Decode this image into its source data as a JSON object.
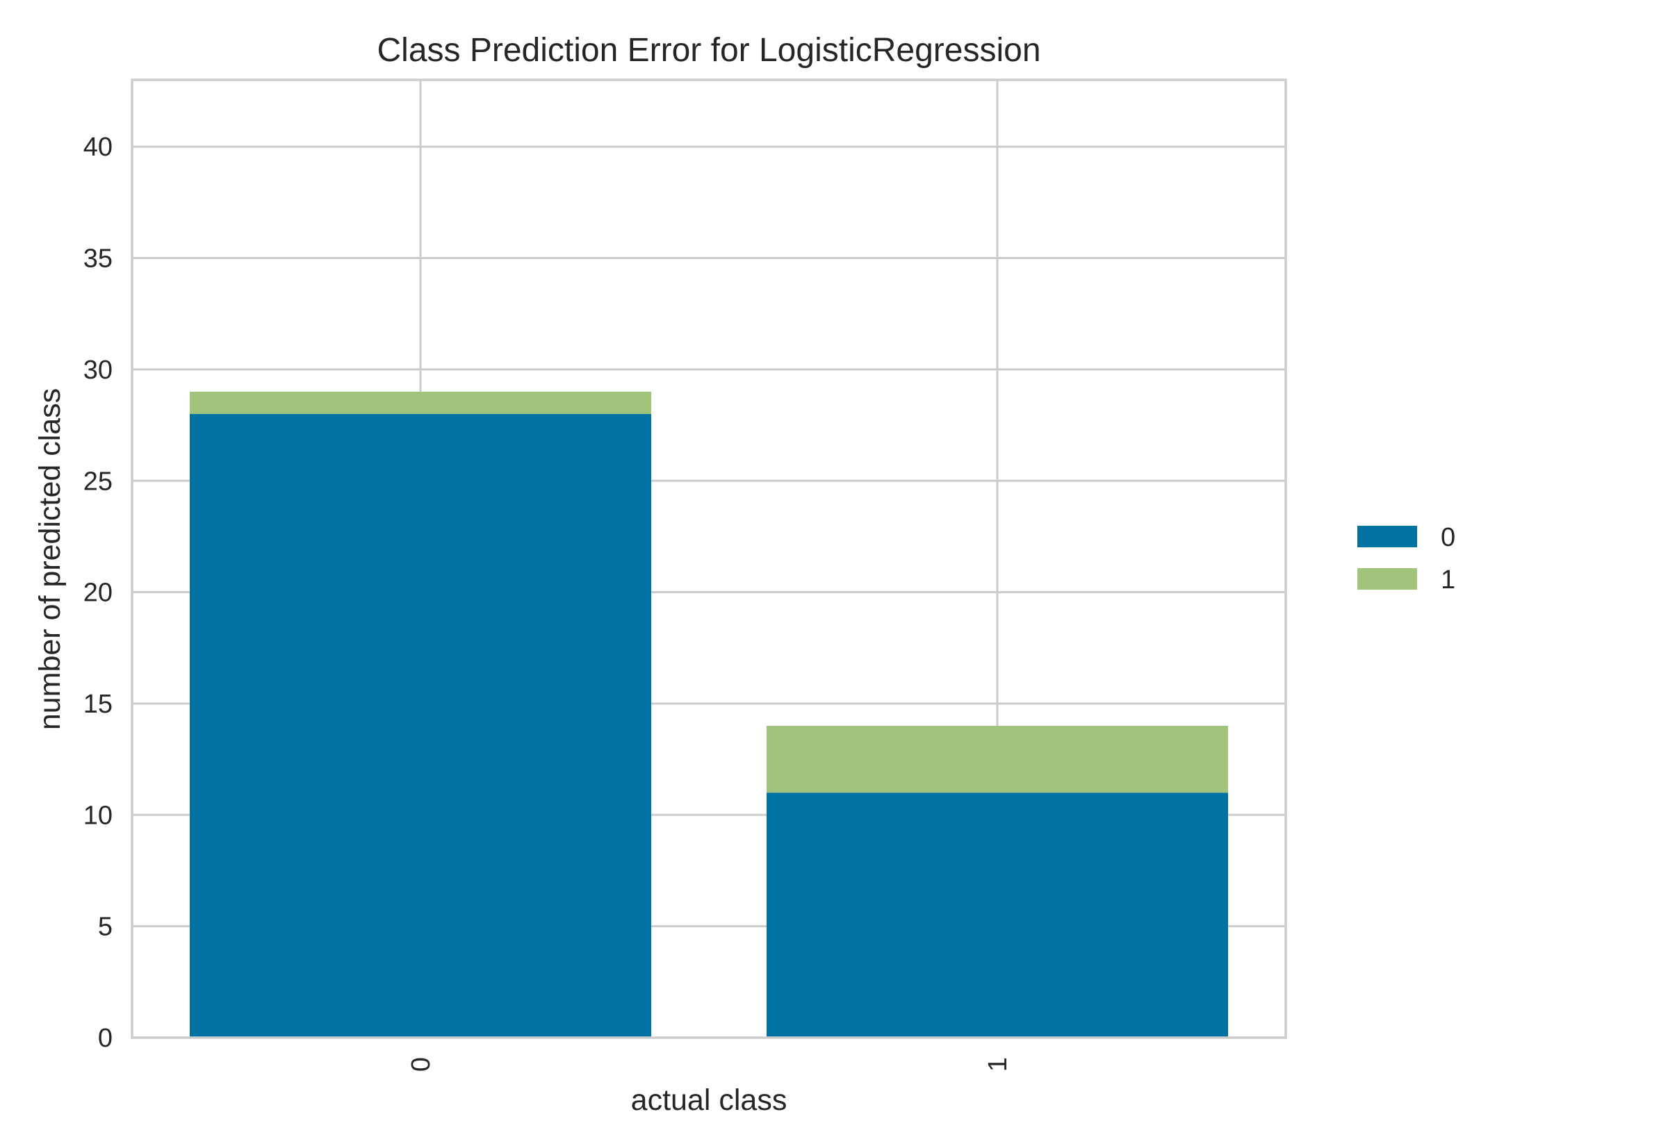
{
  "chart_data": {
    "type": "bar",
    "stacked": true,
    "title": "Class Prediction Error for LogisticRegression",
    "xlabel": "actual class",
    "ylabel": "number of predicted class",
    "categories": [
      "0",
      "1"
    ],
    "series": [
      {
        "name": "0",
        "color": "#0173a3",
        "values": [
          28,
          11
        ]
      },
      {
        "name": "1",
        "color": "#a0c47b",
        "values": [
          1,
          3
        ]
      }
    ],
    "ylim": [
      0,
      43
    ],
    "yticks": [
      0,
      5,
      10,
      15,
      20,
      25,
      30,
      35,
      40
    ],
    "grid": true,
    "legend_position": "right"
  }
}
